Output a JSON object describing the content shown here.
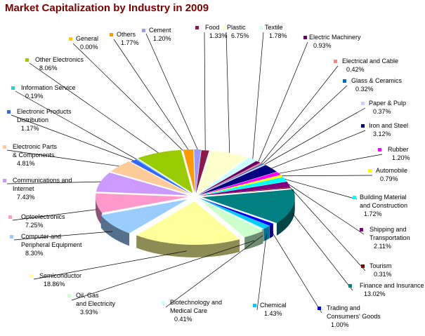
{
  "chart_data": {
    "type": "pie",
    "title": "Market Capitalization by Industry in 2009",
    "title_color": "#7b0000",
    "slices": [
      {
        "label": "Food",
        "value": 1.33,
        "percent_text": "1.33%",
        "color": "#8b1a4a"
      },
      {
        "label": "Plastic",
        "value": 6.75,
        "percent_text": "6.75%",
        "color": "#ffffcc"
      },
      {
        "label": "Textile",
        "value": 1.78,
        "percent_text": "1.78%",
        "color": "#ccffff"
      },
      {
        "label": "Electric Machinery",
        "value": 0.93,
        "percent_text": "0.93%",
        "color": "#660066"
      },
      {
        "label": "Electrical and Cable",
        "value": 0.42,
        "percent_text": "0.42%",
        "color": "#ff8080"
      },
      {
        "label": "Glass & Ceramics",
        "value": 0.32,
        "percent_text": "0.32%",
        "color": "#0066cc"
      },
      {
        "label": "Paper & Pulp",
        "value": 0.37,
        "percent_text": "0.37%",
        "color": "#ccccff"
      },
      {
        "label": "Iron and Steel",
        "value": 3.12,
        "percent_text": "3.12%",
        "color": "#000080"
      },
      {
        "label": "Rubber",
        "value": 1.2,
        "percent_text": "1.20%",
        "color": "#ff00ff"
      },
      {
        "label": "Automobile",
        "value": 0.79,
        "percent_text": "0.79%",
        "color": "#ffff00"
      },
      {
        "label": "Building Material and Construction",
        "value": 1.72,
        "percent_text": "1.72%",
        "color": "#00ffff"
      },
      {
        "label": "Shipping and Transportation",
        "value": 2.11,
        "percent_text": "2.11%",
        "color": "#800080"
      },
      {
        "label": "Tourism",
        "value": 0.31,
        "percent_text": "0.31%",
        "color": "#800000"
      },
      {
        "label": "Finance and Insurance",
        "value": 13.02,
        "percent_text": "13.02%",
        "color": "#008080"
      },
      {
        "label": "Trading and Consumers' Goods",
        "value": 1.0,
        "percent_text": "1.00%",
        "color": "#0000ff"
      },
      {
        "label": "Chemical",
        "value": 1.43,
        "percent_text": "1.43%",
        "color": "#00ccff"
      },
      {
        "label": "Biotechnology and Medical Care",
        "value": 0.41,
        "percent_text": "0.41%",
        "color": "#ccffff"
      },
      {
        "label": "Oil, Gas and Electricity",
        "value": 3.93,
        "percent_text": "3.93%",
        "color": "#ccffcc"
      },
      {
        "label": "Semiconductor",
        "value": 18.86,
        "percent_text": "18.86%",
        "color": "#ffff99"
      },
      {
        "label": "Computer and Peripheral Equipment",
        "value": 8.3,
        "percent_text": "8.30%",
        "color": "#99ccff"
      },
      {
        "label": "Optoelectronics",
        "value": 7.25,
        "percent_text": "7.25%",
        "color": "#ff99cc"
      },
      {
        "label": "Communications and Internet",
        "value": 7.43,
        "percent_text": "7.43%",
        "color": "#cc99ff"
      },
      {
        "label": "Electronic Parts & Components",
        "value": 4.81,
        "percent_text": "4.81%",
        "color": "#ffcc99"
      },
      {
        "label": "Electronic Products Distribution",
        "value": 1.17,
        "percent_text": "1.17%",
        "color": "#3366ff"
      },
      {
        "label": "Information Service",
        "value": 0.19,
        "percent_text": "0.19%",
        "color": "#33cccc"
      },
      {
        "label": "Other Electronics",
        "value": 8.06,
        "percent_text": "8.06%",
        "color": "#99cc00"
      },
      {
        "label": "General",
        "value": 0.0,
        "percent_text": "0.00%",
        "color": "#ffcc00"
      },
      {
        "label": "Others",
        "value": 1.77,
        "percent_text": "1.77%",
        "color": "#ff9900"
      },
      {
        "label": "Cement",
        "value": 1.2,
        "percent_text": "1.20%",
        "color": "#9999ff"
      }
    ]
  }
}
